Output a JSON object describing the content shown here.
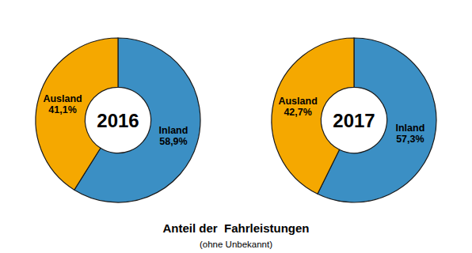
{
  "title": "Anteil der  Fahrleistungen",
  "subtitle": "(ohne Unbekannt)",
  "chart_data": [
    {
      "type": "pie",
      "title": "2016",
      "values": [
        58.9,
        41.1
      ],
      "value_labels": [
        "Inland\n58,9%",
        "Ausland\n41,1%"
      ],
      "colors": [
        "#3B8FC4",
        "#F5A800"
      ],
      "data_labels": true
    },
    {
      "type": "pie",
      "title": "2017",
      "values": [
        57.3,
        42.7
      ],
      "value_labels": [
        "Inland\n57,3%",
        "Ausland\n42,7%"
      ],
      "colors": [
        "#3B8FC4",
        "#F5A800"
      ],
      "data_labels": true
    }
  ]
}
